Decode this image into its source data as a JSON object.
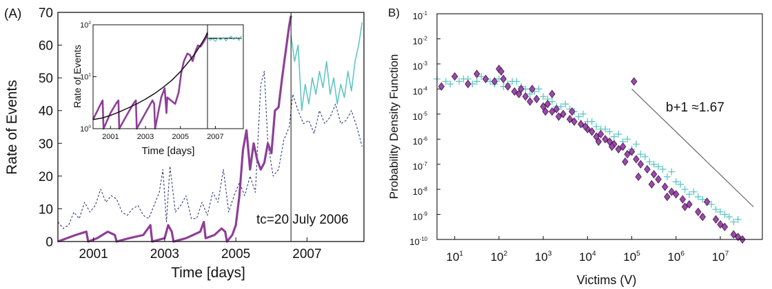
{
  "colors": {
    "purple": "#8e3e98",
    "teal": "#5fc6c4",
    "navy": "#2e3a86",
    "fit": "#111111",
    "diamond_fill": "#9b4aa8",
    "diamond_edge": "#3a1545",
    "ref_line": "#666666"
  },
  "chart_data": [
    {
      "id": "A",
      "panel_label": "(A)",
      "type": "line",
      "xlabel": "Time [days]",
      "ylabel": "Rate of Events",
      "xlim": [
        2000.0,
        2008.6
      ],
      "ylim": [
        0,
        70
      ],
      "xticks": [
        2001,
        2003,
        2005,
        2007
      ],
      "xtick_labels": [
        "2001",
        "2003",
        "2005",
        "2007"
      ],
      "yticks": [
        0,
        10,
        20,
        30,
        40,
        50,
        60,
        70
      ],
      "ytick_labels": [
        "0",
        "10",
        "20",
        "30",
        "40",
        "50",
        "60",
        "70"
      ],
      "vline_x": 2006.55,
      "annotation": "tc=20 July 2006",
      "series": [
        {
          "style": "dashed",
          "color": "navy",
          "x": [
            2000.0,
            2000.15,
            2000.3,
            2000.45,
            2000.6,
            2000.75,
            2000.9,
            2001.05,
            2001.2,
            2001.35,
            2001.5,
            2001.65,
            2001.8,
            2001.95,
            2002.1,
            2002.25,
            2002.4,
            2002.55,
            2002.7,
            2002.85,
            2002.95,
            2003.05,
            2003.15,
            2003.3,
            2003.45,
            2003.6,
            2003.75,
            2003.9,
            2004.05,
            2004.2,
            2004.35,
            2004.5,
            2004.65,
            2004.8,
            2004.95,
            2005.1,
            2005.25,
            2005.4,
            2005.55,
            2005.7,
            2005.8,
            2005.9,
            2006.05,
            2006.2,
            2006.35,
            2006.5,
            2006.6,
            2006.75,
            2006.9,
            2007.05,
            2007.2,
            2007.35,
            2007.5,
            2007.65,
            2007.8,
            2007.95,
            2008.1,
            2008.25,
            2008.4,
            2008.55
          ],
          "y": [
            6,
            4,
            5,
            9,
            7,
            12,
            9,
            11,
            16,
            12,
            14,
            13,
            9,
            8,
            10,
            11,
            8,
            7,
            11,
            15,
            22,
            6,
            23,
            9,
            11,
            14,
            7,
            7,
            12,
            8,
            15,
            12,
            22,
            9,
            14,
            18,
            14,
            20,
            15,
            48,
            52,
            30,
            20,
            22,
            31,
            35,
            45,
            40,
            36,
            37,
            33,
            40,
            36,
            38,
            42,
            36,
            37,
            40,
            35,
            29
          ]
        },
        {
          "style": "solid",
          "color": "purple",
          "x": [
            2000.0,
            2000.5,
            2000.8,
            2000.85,
            2001.1,
            2001.4,
            2001.6,
            2001.65,
            2002.0,
            2002.4,
            2002.6,
            2002.65,
            2003.0,
            2003.1,
            2003.2,
            2003.25,
            2003.6,
            2003.8,
            2004.0,
            2004.1,
            2004.15,
            2004.4,
            2004.6,
            2004.7,
            2004.75,
            2004.9,
            2005.0,
            2005.1,
            2005.2,
            2005.3,
            2005.4,
            2005.5,
            2005.6,
            2005.7,
            2005.8,
            2005.9,
            2006.0,
            2006.1,
            2006.2,
            2006.3,
            2006.4,
            2006.5,
            2006.55
          ],
          "y": [
            0,
            2,
            3,
            0,
            1,
            3,
            2,
            0,
            1,
            2,
            5,
            0,
            1,
            5,
            3,
            0,
            1,
            2,
            3,
            6,
            1,
            2,
            4,
            3,
            0,
            2,
            5,
            14,
            28,
            34,
            22,
            30,
            25,
            22,
            24,
            30,
            27,
            40,
            41,
            50,
            58,
            66,
            69
          ]
        },
        {
          "style": "solid",
          "color": "teal",
          "x": [
            2006.55,
            2006.65,
            2006.75,
            2006.85,
            2006.95,
            2007.05,
            2007.15,
            2007.25,
            2007.35,
            2007.45,
            2007.55,
            2007.65,
            2007.75,
            2007.85,
            2007.95,
            2008.05,
            2008.15,
            2008.25,
            2008.35,
            2008.45,
            2008.55
          ],
          "y": [
            63,
            55,
            60,
            40,
            48,
            42,
            50,
            45,
            52,
            47,
            55,
            45,
            50,
            42,
            48,
            44,
            52,
            46,
            55,
            60,
            67
          ]
        }
      ],
      "inset": {
        "xlabel": "Time [days]",
        "ylabel": "Rate of Events",
        "xlim": [
          2000.0,
          2008.6
        ],
        "ylim_log10": [
          0,
          2
        ],
        "xticks": [
          2001,
          2003,
          2005,
          2007
        ],
        "xtick_labels": [
          "2001",
          "2003",
          "2005",
          "2007"
        ],
        "yticks_log10": [
          0,
          1,
          2
        ],
        "ytick_base": "10",
        "ytick_exponents": [
          "0",
          "1",
          "2"
        ],
        "vline_x": 2006.55,
        "series": [
          {
            "color": "purple",
            "x": [
              2000.0,
              2000.4,
              2000.55,
              2000.6,
              2001.0,
              2001.3,
              2001.45,
              2001.5,
              2002.0,
              2002.3,
              2002.45,
              2002.5,
              2003.0,
              2003.4,
              2003.5,
              2003.55,
              2003.9,
              2004.1,
              2004.2,
              2004.25,
              2004.7,
              2004.9,
              2005.05,
              2005.2,
              2005.4,
              2005.55,
              2005.7,
              2005.85,
              2006.0,
              2006.15,
              2006.3,
              2006.45,
              2006.55
            ],
            "y": [
              1.5,
              2.8,
              3.5,
              1,
              2,
              3,
              3.5,
              1,
              2,
              3,
              3.5,
              1,
              2,
              3.5,
              3,
              1,
              4,
              6,
              2,
              4,
              3,
              5,
              12,
              20,
              28,
              26,
              20,
              30,
              40,
              38,
              45,
              55,
              68
            ]
          },
          {
            "color": "fit",
            "x": [
              2000.0,
              2000.5,
              2001.0,
              2001.5,
              2002.0,
              2002.5,
              2003.0,
              2003.5,
              2004.0,
              2004.5,
              2005.0,
              2005.3,
              2005.6,
              2005.9,
              2006.1,
              2006.3,
              2006.45,
              2006.55
            ],
            "y": [
              1.5,
              1.6,
              1.8,
              2.1,
              2.5,
              3.0,
              3.7,
              4.7,
              6.2,
              8.5,
              12.5,
              16.5,
              22,
              30,
              38,
              49,
              60,
              72
            ]
          },
          {
            "color": "fit",
            "x": [
              2006.55,
              2008.5
            ],
            "y": [
              55,
              55
            ]
          },
          {
            "color": "teal",
            "x": [
              2006.55,
              2006.7,
              2006.85,
              2007.0,
              2007.15,
              2007.3,
              2007.45,
              2007.6,
              2007.75,
              2007.9,
              2008.05,
              2008.2,
              2008.35,
              2008.5
            ],
            "y": [
              58,
              50,
              54,
              48,
              56,
              51,
              57,
              49,
              55,
              60,
              52,
              58,
              50,
              62
            ]
          }
        ]
      }
    },
    {
      "id": "B",
      "panel_label": "B)",
      "type": "scatter",
      "xlabel": "Victims (V)",
      "ylabel": "Probability Density Function",
      "xlim_log10": [
        0.6,
        7.95
      ],
      "ylim_log10": [
        -10,
        -1
      ],
      "xtick_exponents": [
        1,
        2,
        3,
        4,
        5,
        6,
        7
      ],
      "xtick_labels": [
        "1",
        "2",
        "3",
        "4",
        "5",
        "6",
        "7"
      ],
      "ytick_exponents": [
        -1,
        -2,
        -3,
        -4,
        -5,
        -6,
        -7,
        -8,
        -9,
        -10
      ],
      "ytick_labels": [
        "-1",
        "-2",
        "-3",
        "-4",
        "-5",
        "-6",
        "-7",
        "-8",
        "-9",
        "-10"
      ],
      "tick_base": "10",
      "annotation": "b+1 ≈1.67",
      "reference_line": {
        "x_log10": [
          5.0,
          7.75
        ],
        "y_log10": [
          -4.0,
          -8.7
        ]
      },
      "series": [
        {
          "marker": "plus",
          "color": "teal",
          "x_log10": [
            0.6,
            0.8,
            1.0,
            1.2,
            1.4,
            1.6,
            1.8,
            2.0,
            2.2,
            2.4,
            2.6,
            2.8,
            3.0,
            3.2,
            3.4,
            3.6,
            3.8,
            4.0,
            4.2,
            4.4,
            4.6,
            4.8,
            5.0,
            5.2,
            5.4,
            5.6,
            5.8,
            6.0,
            6.2,
            6.4,
            6.6,
            6.8,
            7.0,
            7.2,
            7.4,
            0.9,
            1.3,
            1.7,
            2.1,
            2.5,
            2.9,
            3.3,
            3.7,
            4.1,
            4.5,
            4.9,
            5.3,
            5.7,
            6.1,
            6.5,
            6.9,
            7.3,
            1.1,
            1.5,
            1.9,
            2.3,
            2.7,
            3.1,
            3.5,
            3.9,
            4.3,
            4.7,
            5.1,
            5.5,
            5.9,
            6.3,
            6.7,
            7.1
          ],
          "y_log10": [
            -3.6,
            -3.7,
            -3.5,
            -3.6,
            -3.8,
            -3.5,
            -3.7,
            -3.6,
            -3.8,
            -3.7,
            -4.0,
            -4.1,
            -4.3,
            -4.5,
            -4.7,
            -4.8,
            -5.1,
            -5.3,
            -5.5,
            -5.6,
            -5.9,
            -6.1,
            -6.4,
            -6.6,
            -6.9,
            -7.1,
            -7.5,
            -7.7,
            -8.0,
            -8.1,
            -8.4,
            -8.6,
            -8.9,
            -9.1,
            -9.2,
            -3.8,
            -3.6,
            -3.6,
            -3.9,
            -3.9,
            -4.0,
            -4.7,
            -4.9,
            -5.3,
            -5.7,
            -6.0,
            -6.7,
            -7.2,
            -7.8,
            -8.3,
            -8.8,
            -9.3,
            -3.7,
            -3.7,
            -3.8,
            -3.7,
            -4.2,
            -4.4,
            -4.6,
            -5.0,
            -5.6,
            -5.8,
            -6.2,
            -7.0,
            -7.3,
            -8.2,
            -8.5,
            -9.0
          ]
        },
        {
          "marker": "diamond",
          "color": "purple",
          "x_log10": [
            0.7,
            1.0,
            1.3,
            1.5,
            1.7,
            1.9,
            2.0,
            2.1,
            2.2,
            2.35,
            2.5,
            2.6,
            2.7,
            2.85,
            3.0,
            3.1,
            3.2,
            3.3,
            3.45,
            3.6,
            3.7,
            3.85,
            4.0,
            4.1,
            4.2,
            4.3,
            4.4,
            4.5,
            4.6,
            4.7,
            4.8,
            4.9,
            5.0,
            5.1,
            5.2,
            5.35,
            5.5,
            5.6,
            5.75,
            5.9,
            6.0,
            6.15,
            6.3,
            6.5,
            6.7,
            6.9,
            7.1,
            7.3,
            7.5,
            2.05,
            2.45,
            2.75,
            3.05,
            3.35,
            3.65,
            3.95,
            4.25,
            4.55,
            4.85,
            5.15,
            5.45,
            5.8,
            6.2,
            6.6,
            7.0,
            7.4,
            5.05,
            3.2
          ],
          "y_log10": [
            -3.9,
            -3.5,
            -3.8,
            -3.4,
            -3.6,
            -3.7,
            -3.2,
            -3.6,
            -3.9,
            -4.1,
            -4.0,
            -4.3,
            -4.5,
            -4.4,
            -4.7,
            -4.6,
            -4.9,
            -4.8,
            -5.0,
            -5.2,
            -5.3,
            -5.4,
            -5.6,
            -5.7,
            -5.9,
            -5.8,
            -6.0,
            -6.1,
            -6.2,
            -6.4,
            -6.3,
            -6.6,
            -6.5,
            -6.8,
            -7.0,
            -7.2,
            -7.4,
            -7.6,
            -7.9,
            -8.1,
            -8.2,
            -8.4,
            -8.6,
            -8.9,
            -8.5,
            -9.2,
            -9.5,
            -9.8,
            -10.0,
            -3.3,
            -4.2,
            -4.0,
            -4.9,
            -5.1,
            -4.9,
            -5.5,
            -6.1,
            -6.3,
            -6.9,
            -7.5,
            -7.8,
            -8.3,
            -8.7,
            -9.1,
            -9.4,
            -9.9,
            -3.7,
            -4.2
          ]
        }
      ]
    }
  ]
}
